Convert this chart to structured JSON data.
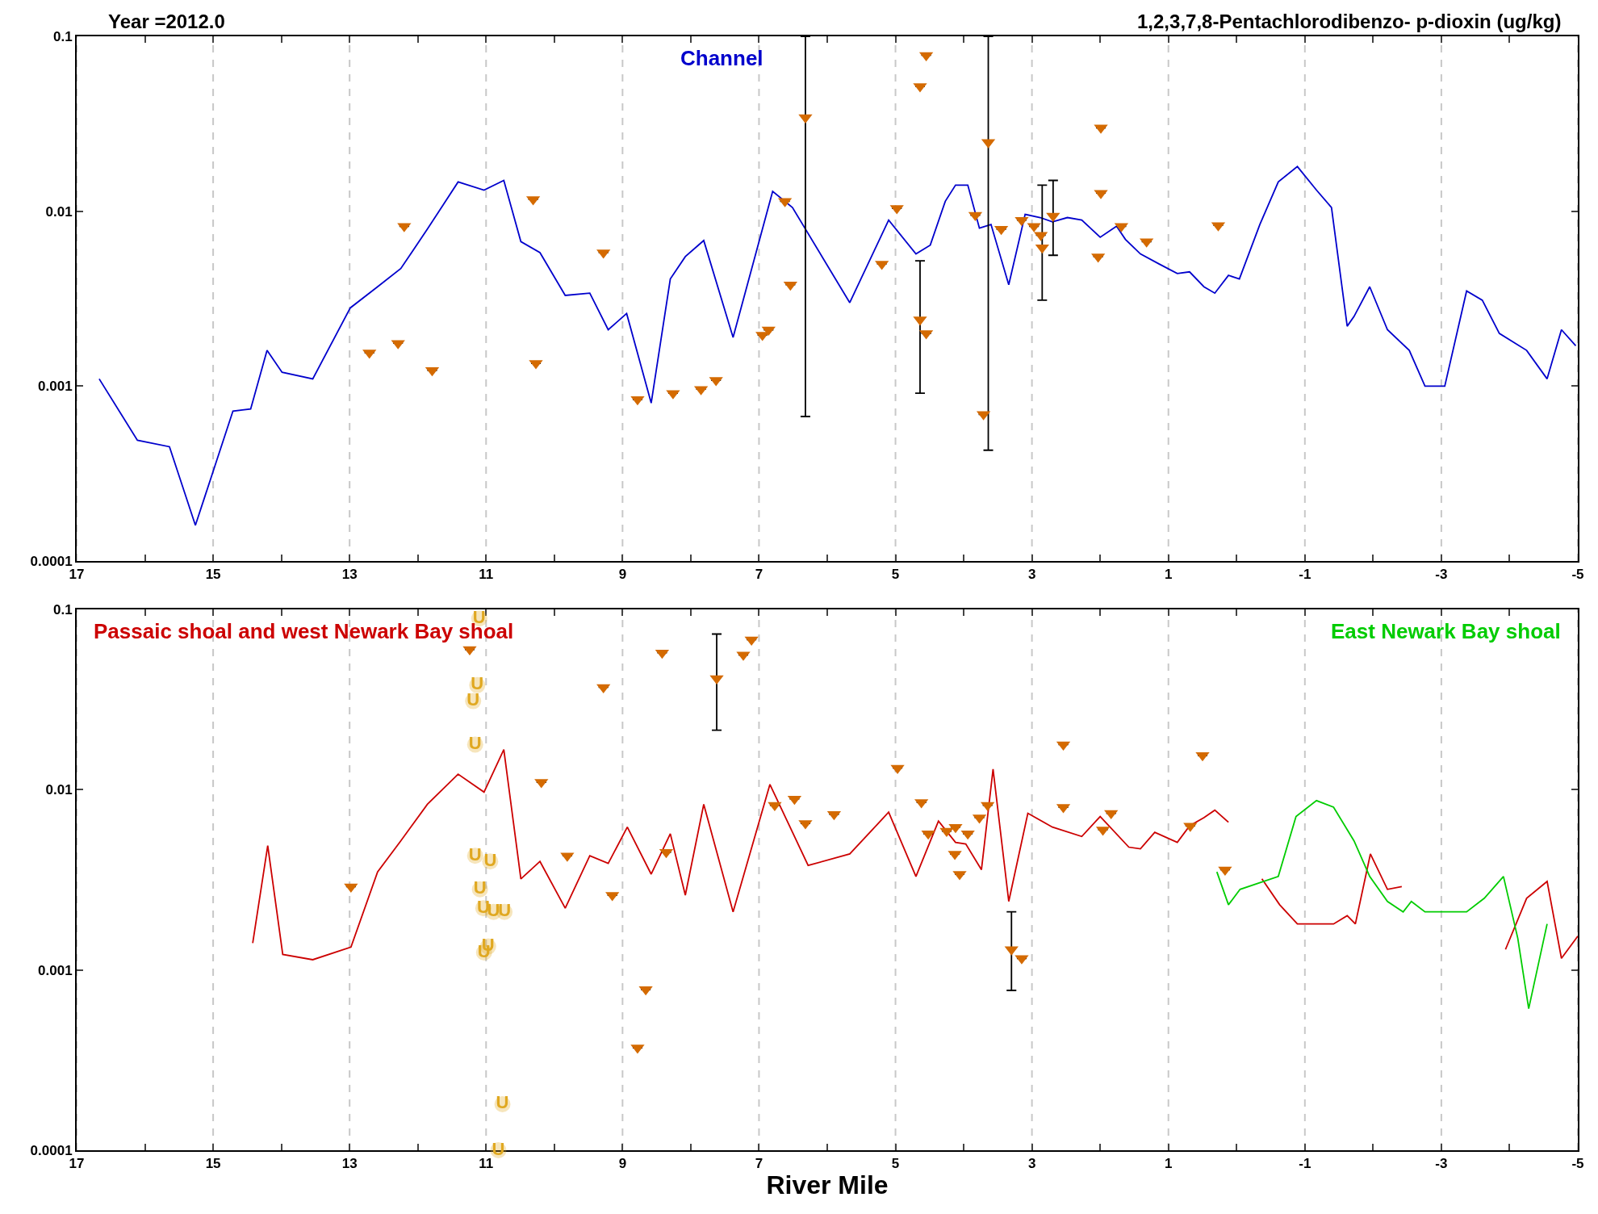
{
  "chart_data": [
    {
      "type": "line",
      "title": "1,2,3,7,8-Pentachlorodibenzo- p-dioxin (ug/kg)",
      "subtitle": "Year =2012.0",
      "log": true,
      "grid": "x",
      "legend": false,
      "xlim": [
        17,
        -5
      ],
      "xticks": [
        17,
        {
          "value": 16,
          "label": null
        },
        15,
        {
          "value": 14,
          "label": null
        },
        13,
        {
          "value": 12,
          "label": null
        },
        11,
        {
          "value": 10,
          "label": null
        },
        9,
        {
          "value": 8,
          "label": null
        },
        7,
        {
          "value": 6,
          "label": null
        },
        5,
        {
          "value": 4,
          "label": null
        },
        3,
        {
          "value": 2,
          "label": null
        },
        1,
        {
          "value": 0,
          "label": null
        },
        -1,
        {
          "value": -2,
          "label": null
        },
        -3,
        {
          "value": -4,
          "label": null
        },
        -5
      ],
      "ylim": [
        0.0001,
        0.1
      ],
      "yticks": [
        0.0001,
        0.001,
        0.01,
        0.1
      ],
      "series": [
        {
          "name": "Channel",
          "type": "line",
          "color": "#0000cc",
          "x": [
            16.67,
            16.11,
            15.64,
            15.26,
            14.71,
            14.45,
            14.21,
            13.99,
            13.54,
            12.99,
            12.59,
            12.25,
            11.86,
            11.41,
            11.03,
            10.74,
            10.49,
            10.21,
            9.84,
            9.48,
            9.21,
            8.94,
            8.58,
            8.3,
            8.08,
            7.81,
            7.38,
            6.8,
            6.51,
            5.67,
            5.1,
            4.7,
            4.49,
            4.27,
            4.12,
            3.94,
            3.77,
            3.6,
            3.34,
            3.1,
            2.88,
            2.7,
            2.48,
            2.27,
            2,
            1.76,
            1.63,
            1.41,
            1.14,
            0.87,
            0.69,
            0.48,
            0.32,
            0.12,
            -0.04,
            -0.34,
            -0.61,
            -0.89,
            -1.17,
            -1.39,
            -1.62,
            -1.72,
            -1.95,
            -2.21,
            -2.53,
            -2.76,
            -3.05,
            -3.37,
            -3.6,
            -3.85,
            -4.25,
            -4.55,
            -4.76,
            -4.97
          ],
          "values": [
            0.0011,
            0.00049,
            0.00045,
            0.00016,
            0.00072,
            0.00074,
            0.0016,
            0.0012,
            0.0011,
            0.0028,
            0.0037,
            0.0047,
            0.0079,
            0.0147,
            0.0132,
            0.015,
            0.0067,
            0.0058,
            0.0033,
            0.0034,
            0.0021,
            0.0026,
            0.0008,
            0.0041,
            0.0055,
            0.0068,
            0.0019,
            0.013,
            0.0105,
            0.003,
            0.0089,
            0.0057,
            0.0064,
            0.0114,
            0.0141,
            0.0141,
            0.008,
            0.0084,
            0.0038,
            0.0096,
            0.0092,
            0.0087,
            0.0092,
            0.0089,
            0.0071,
            0.0082,
            0.0069,
            0.0057,
            0.005,
            0.0044,
            0.0045,
            0.0037,
            0.0034,
            0.0043,
            0.0041,
            0.0084,
            0.0147,
            0.018,
            0.0132,
            0.0105,
            0.0022,
            0.0025,
            0.0037,
            0.0021,
            0.0016,
            0.001,
            0.001,
            0.0035,
            0.0031,
            0.002,
            0.0016,
            0.0011,
            0.0021,
            0.0017
          ]
        },
        {
          "type": "scatter",
          "marker": "triangle",
          "color": "#d46a00",
          "x": [
            12.71,
            12.29,
            12.2,
            11.79,
            10.31,
            10.27,
            9.28,
            8.78,
            8.26,
            7.85,
            7.63,
            6.95,
            6.86,
            6.62,
            6.54,
            6.32,
            5.2,
            4.98,
            4.64,
            4.55,
            4.64,
            4.55,
            3.83,
            3.71,
            3.64,
            3.45,
            3.15,
            2.97,
            2.87,
            2.85,
            2.69,
            2.03,
            1.99,
            1.99,
            1.69,
            1.32,
            0.27
          ],
          "values": [
            0.00155,
            0.00176,
            0.0082,
            0.00123,
            0.0117,
            0.00135,
            0.0058,
            0.00084,
            0.00091,
            0.00096,
            0.00108,
            0.00196,
            0.0021,
            0.0114,
            0.0038,
            0.0344,
            0.005,
            0.0104,
            0.0518,
            0.078,
            0.0024,
            0.002,
            0.0095,
            0.00069,
            0.0248,
            0.0079,
            0.0089,
            0.0082,
            0.0073,
            0.0062,
            0.0094,
            0.0055,
            0.03,
            0.0127,
            0.0082,
            0.0067,
            0.0083
          ],
          "errors": [
            null,
            null,
            null,
            null,
            null,
            null,
            null,
            null,
            null,
            null,
            null,
            null,
            null,
            null,
            null,
            [
              0.00067,
              0.1
            ],
            null,
            null,
            null,
            null,
            [
              0.00091,
              0.0052
            ],
            null,
            null,
            null,
            [
              0.00043,
              0.1
            ],
            null,
            null,
            null,
            null,
            [
              0.0031,
              0.0141
            ],
            [
              0.0056,
              0.015
            ],
            null,
            null,
            null,
            null,
            null,
            null
          ]
        }
      ]
    },
    {
      "type": "line",
      "xlabel": "River Mile",
      "log": true,
      "grid": "x",
      "legend": false,
      "xlim": [
        17,
        -5
      ],
      "xticks": [
        17,
        {
          "value": 16,
          "label": null
        },
        15,
        {
          "value": 14,
          "label": null
        },
        13,
        {
          "value": 12,
          "label": null
        },
        11,
        {
          "value": 10,
          "label": null
        },
        9,
        {
          "value": 8,
          "label": null
        },
        7,
        {
          "value": 6,
          "label": null
        },
        5,
        {
          "value": 4,
          "label": null
        },
        3,
        {
          "value": 2,
          "label": null
        },
        1,
        {
          "value": 0,
          "label": null
        },
        -1,
        {
          "value": -2,
          "label": null
        },
        -3,
        {
          "value": -4,
          "label": null
        },
        -5
      ],
      "ylim": [
        0.0001,
        0.1
      ],
      "yticks": [
        0.0001,
        0.001,
        0.01,
        0.1
      ],
      "series": [
        {
          "name": "Passaic shoal and west Newark Bay shoal",
          "type": "line",
          "color": "#cc0000",
          "x": [
            14.42,
            14.2,
            13.98,
            13.54,
            12.98,
            12.59,
            12.25,
            11.86,
            11.41,
            11.03,
            10.74,
            10.49,
            10.21,
            9.84,
            9.48,
            9.21,
            8.93,
            8.58,
            8.3,
            8.08,
            7.81,
            7.38,
            6.84,
            6.28,
            5.67,
            5.1,
            4.7,
            4.37,
            4.12,
            3.97,
            3.74,
            3.57,
            3.34,
            3.06,
            2.7,
            2.27,
            2,
            1.58,
            1.41,
            1.2,
            0.87,
            0.69,
            0.48,
            0.32,
            0.12,
            -0.12,
            -0.37,
            -0.63,
            -0.89,
            -1.42,
            -1.62,
            -1.74,
            -1.96,
            -2.21,
            -2.42,
            -3.2,
            -3.94,
            -4.25,
            -4.55,
            -4.76,
            -5
          ],
          "values": [
            0.00141,
            0.0049,
            0.00122,
            0.00114,
            0.00134,
            0.0035,
            0.0052,
            0.0083,
            0.0122,
            0.0097,
            0.0167,
            0.0032,
            0.004,
            0.0022,
            0.0043,
            0.0039,
            0.0062,
            0.0034,
            0.0057,
            0.0026,
            0.0083,
            0.0021,
            0.0107,
            0.0038,
            0.0044,
            0.0075,
            0.0033,
            0.0067,
            0.0051,
            0.005,
            0.0036,
            0.013,
            0.0024,
            0.0074,
            0.0062,
            0.0055,
            0.0071,
            0.0048,
            0.0047,
            0.0058,
            0.0051,
            0.0063,
            0.007,
            0.0077,
            0.0066,
            null,
            0.0032,
            0.0023,
            0.0018,
            0.0018,
            0.002,
            0.0018,
            0.0044,
            0.0028,
            0.0029,
            null,
            0.0013,
            0.0025,
            0.0031,
            0.00116,
            0.00154
          ]
        },
        {
          "name": "East Newark Bay shoal",
          "type": "line",
          "color": "#00cc00",
          "x": [
            0.29,
            0.12,
            -0.05,
            -0.61,
            -0.87,
            -1.17,
            -1.42,
            -1.72,
            -1.95,
            -2.21,
            -2.44,
            -2.56,
            -2.76,
            -3.37,
            -3.63,
            -3.91,
            -4.12,
            -4.28,
            -4.55
          ],
          "values": [
            0.0035,
            0.0023,
            0.0028,
            0.0033,
            0.0071,
            0.0087,
            0.008,
            0.0052,
            0.0033,
            0.0024,
            0.0021,
            0.0024,
            0.0021,
            0.0021,
            0.0025,
            0.0033,
            0.0015,
            0.00061,
            0.0018
          ]
        },
        {
          "type": "scatter",
          "marker": "triangle",
          "color": "#d46a00",
          "x": [
            12.98,
            11.24,
            10.19,
            9.81,
            9.28,
            9.15,
            8.78,
            8.66,
            8.42,
            8.36,
            7.62,
            7.23,
            7.11,
            6.77,
            6.48,
            6.32,
            5.9,
            4.97,
            4.62,
            4.52,
            4.25,
            4.12,
            4.13,
            4.06,
            3.94,
            3.77,
            3.65,
            3.3,
            3.15,
            2.54,
            2.54,
            1.96,
            1.84,
            0.68,
            0.5,
            0.17
          ],
          "values": [
            0.0029,
            0.06,
            0.011,
            0.0043,
            0.037,
            0.0026,
            0.00037,
            0.00078,
            0.0575,
            0.0045,
            0.0414,
            0.056,
            0.068,
            0.0082,
            0.0089,
            0.0065,
            0.0073,
            0.0132,
            0.0085,
            0.0057,
            0.0059,
            0.0062,
            0.0044,
            0.0034,
            0.0057,
            0.007,
            0.0082,
            0.0013,
            0.00116,
            0.0178,
            0.008,
            0.006,
            0.0074,
            0.0063,
            0.0155,
            0.0036
          ],
          "errors": [
            null,
            null,
            null,
            null,
            null,
            null,
            null,
            null,
            null,
            null,
            [
              0.0214,
              0.073
            ],
            null,
            null,
            null,
            null,
            null,
            null,
            null,
            null,
            null,
            null,
            null,
            null,
            null,
            null,
            null,
            null,
            [
              0.00077,
              0.0021
            ],
            null,
            null,
            null,
            null,
            null,
            null,
            null,
            null
          ]
        },
        {
          "type": "scatter",
          "marker": "circle",
          "color": "#e0a820",
          "x": [
            11.1,
            11.13,
            11.19,
            11.16,
            11.16,
            10.94,
            11.09,
            11.04,
            10.89,
            10.73,
            10.97,
            11.03,
            10.76,
            10.82
          ],
          "values": [
            0.089,
            0.038,
            0.031,
            0.0178,
            0.0043,
            0.004,
            0.0028,
            0.0022,
            0.0021,
            0.0021,
            0.00135,
            0.00125,
            0.00018,
            0.0001
          ],
          "value_labels": [
            "U",
            "U",
            "U",
            "U",
            "U",
            "U",
            "U",
            "U",
            "U",
            "U",
            "U",
            "U",
            "U",
            "U"
          ]
        }
      ]
    }
  ]
}
